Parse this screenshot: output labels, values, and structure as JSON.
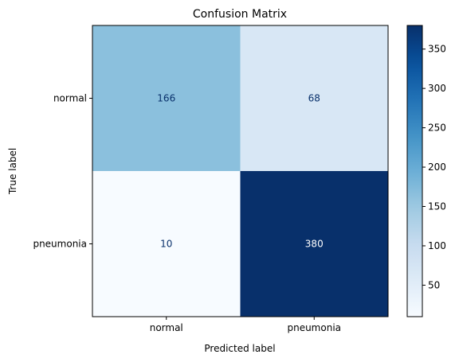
{
  "chart_data": {
    "type": "heatmap",
    "title": "Confusion Matrix",
    "xlabel": "Predicted label",
    "ylabel": "True label",
    "x_categories": [
      "normal",
      "pneumonia"
    ],
    "y_categories": [
      "normal",
      "pneumonia"
    ],
    "values": [
      [
        166,
        68
      ],
      [
        10,
        380
      ]
    ],
    "colormap": "Blues",
    "colorbar": {
      "min": 10,
      "max": 380,
      "ticks": [
        50,
        100,
        150,
        200,
        250,
        300,
        350
      ]
    },
    "grid": false
  }
}
